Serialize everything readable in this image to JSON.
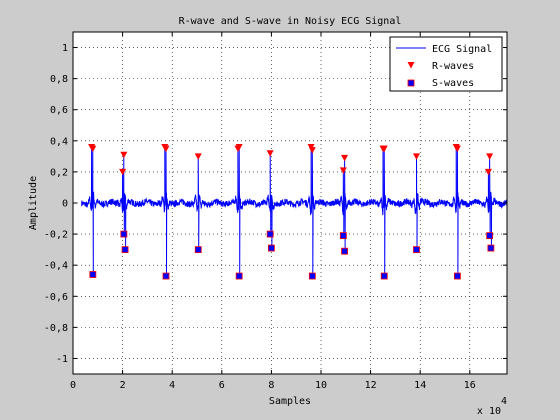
{
  "chart_data": {
    "type": "line",
    "title": "R-wave and S-wave in Noisy ECG Signal",
    "xlabel": "Samples",
    "ylabel": "Amplitude",
    "x_exponent_label": "x 10",
    "x_exponent_power": "4",
    "xlim": [
      0,
      17.5
    ],
    "ylim": [
      -1.1,
      1.1
    ],
    "x_ticks": [
      0,
      2,
      4,
      6,
      8,
      10,
      12,
      14,
      16
    ],
    "x_tick_labels": [
      "0",
      "2",
      "4",
      "6",
      "8",
      "10",
      "12",
      "14",
      "16"
    ],
    "y_ticks": [
      -1,
      -0.8,
      -0.6,
      -0.4,
      -0.2,
      0,
      0.2,
      0.4,
      0.6,
      0.8,
      1
    ],
    "y_tick_labels": [
      "-1",
      "-0,8",
      "-0,6",
      "-0,4",
      "-0,2",
      "0",
      "0,2",
      "0,4",
      "0,6",
      "0,8",
      "1"
    ],
    "grid": true,
    "legend_position": "top-right",
    "colors": {
      "signal": "#0000ff",
      "r_marker": "#ff0000",
      "s_marker": "#0000ff"
    },
    "series": [
      {
        "name": "ECG Signal",
        "style": "line"
      },
      {
        "name": "R-waves",
        "style": "marker-triangle-down",
        "x": [
          0.75,
          0.8,
          2.0,
          2.05,
          3.7,
          3.75,
          5.05,
          6.65,
          6.7,
          7.95,
          9.6,
          9.65,
          10.9,
          10.95,
          12.5,
          12.55,
          13.85,
          15.45,
          15.5,
          16.75,
          16.8
        ],
        "y": [
          0.36,
          0.35,
          0.2,
          0.31,
          0.36,
          0.35,
          0.3,
          0.35,
          0.36,
          0.32,
          0.36,
          0.34,
          0.21,
          0.29,
          0.35,
          0.35,
          0.3,
          0.36,
          0.35,
          0.2,
          0.3
        ]
      },
      {
        "name": "S-waves",
        "style": "marker-square",
        "x": [
          0.8,
          2.05,
          2.1,
          3.75,
          5.05,
          6.7,
          7.95,
          8.0,
          9.65,
          10.9,
          10.95,
          12.55,
          13.85,
          15.5,
          16.8,
          16.85
        ],
        "y": [
          -0.46,
          -0.2,
          -0.3,
          -0.47,
          -0.3,
          -0.47,
          -0.2,
          -0.29,
          -0.47,
          -0.21,
          -0.31,
          -0.47,
          -0.3,
          -0.47,
          -0.21,
          -0.29
        ]
      }
    ]
  }
}
